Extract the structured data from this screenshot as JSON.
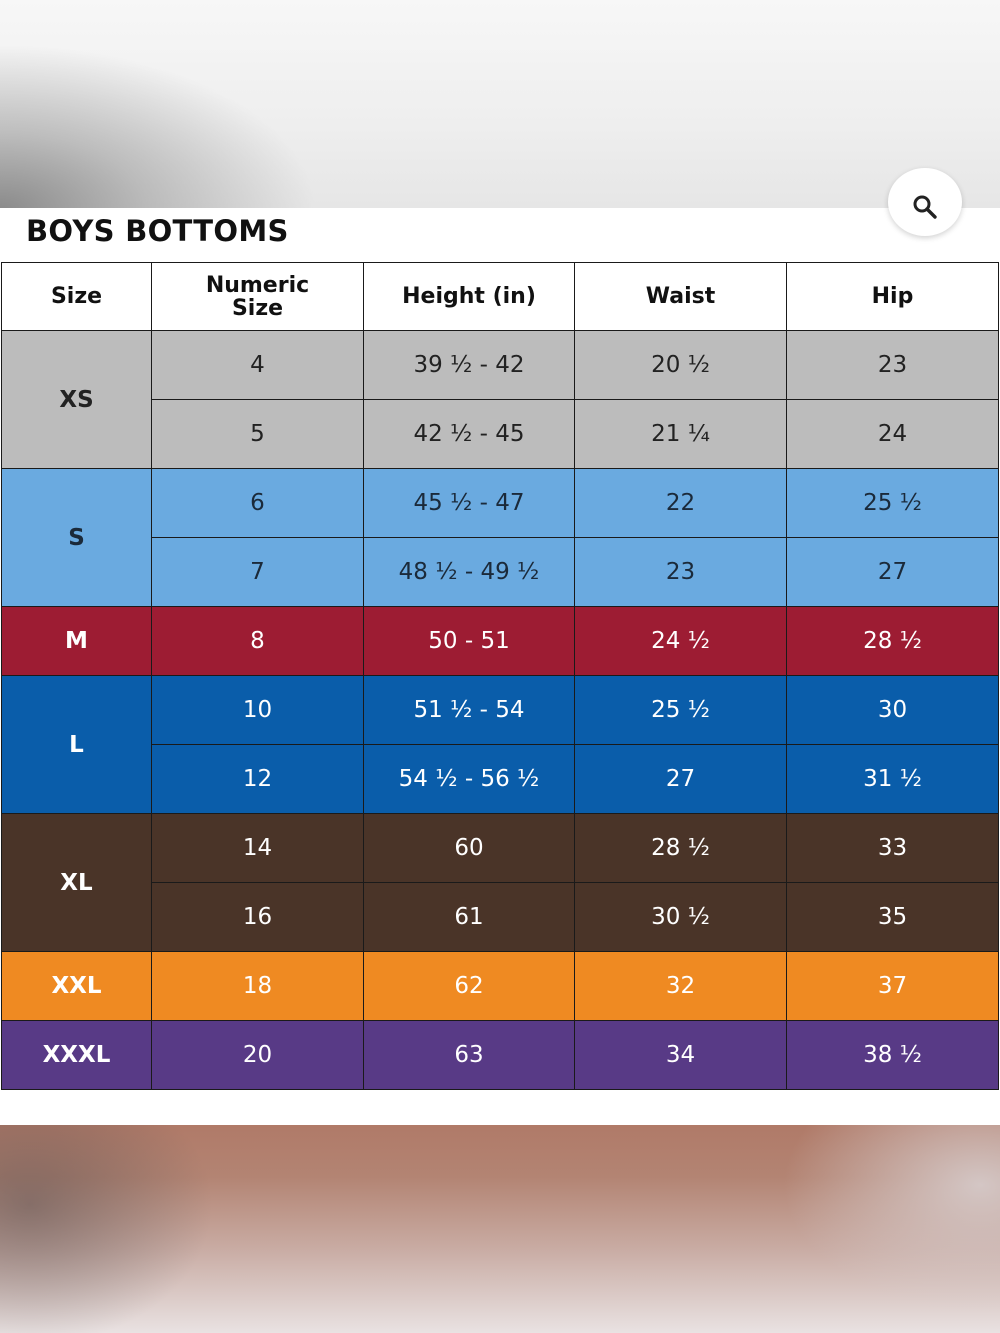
{
  "chart_title": "BOYS BOTTOMS",
  "zoom_icon": "zoom-magnifier-icon",
  "colors": {
    "xs": "#bcbcbc",
    "s": "#6aaae0",
    "m": "#9d1c33",
    "l": "#0a5daa",
    "xl": "#4a3428",
    "xxl": "#ef8a22",
    "xxxl": "#583a86"
  },
  "table": {
    "headers": [
      "Size",
      "Numeric Size",
      "Height (in)",
      "Waist",
      "Hip"
    ],
    "groups": [
      {
        "size": "XS",
        "rows": [
          {
            "numeric": "4",
            "height": "39 ½ - 42",
            "waist": "20 ½",
            "hip": "23"
          },
          {
            "numeric": "5",
            "height": "42 ½ - 45",
            "waist": "21 ¼",
            "hip": "24"
          }
        ]
      },
      {
        "size": "S",
        "rows": [
          {
            "numeric": "6",
            "height": "45 ½ - 47",
            "waist": "22",
            "hip": "25 ½"
          },
          {
            "numeric": "7",
            "height": "48 ½ - 49 ½",
            "waist": "23",
            "hip": "27"
          }
        ]
      },
      {
        "size": "M",
        "rows": [
          {
            "numeric": "8",
            "height": "50 - 51",
            "waist": "24 ½",
            "hip": "28 ½"
          }
        ]
      },
      {
        "size": "L",
        "rows": [
          {
            "numeric": "10",
            "height": "51 ½ - 54",
            "waist": "25 ½",
            "hip": "30"
          },
          {
            "numeric": "12",
            "height": "54 ½ - 56 ½",
            "waist": "27",
            "hip": "31 ½"
          }
        ]
      },
      {
        "size": "XL",
        "rows": [
          {
            "numeric": "14",
            "height": "60",
            "waist": "28 ½",
            "hip": "33"
          },
          {
            "numeric": "16",
            "height": "61",
            "waist": "30 ½",
            "hip": "35"
          }
        ]
      },
      {
        "size": "XXL",
        "rows": [
          {
            "numeric": "18",
            "height": "62",
            "waist": "32",
            "hip": "37"
          }
        ]
      },
      {
        "size": "XXXL",
        "rows": [
          {
            "numeric": "20",
            "height": "63",
            "waist": "34",
            "hip": "38 ½"
          }
        ]
      }
    ]
  }
}
